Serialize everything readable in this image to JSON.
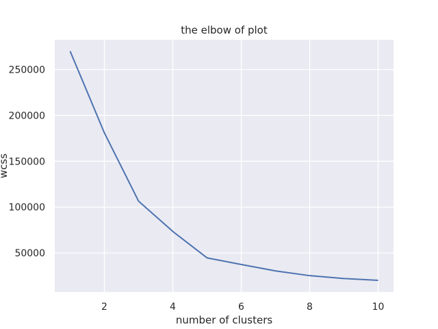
{
  "chart_data": {
    "type": "line",
    "title": "the elbow of plot",
    "xlabel": "number of clusters",
    "ylabel": "wcss",
    "x": [
      1,
      2,
      3,
      4,
      5,
      6,
      7,
      8,
      9,
      10
    ],
    "series": [
      {
        "values": [
          270000,
          181000,
          106500,
          73500,
          44700,
          37500,
          30500,
          25300,
          22200,
          20200
        ]
      }
    ],
    "xlim": [
      0.55,
      10.45
    ],
    "ylim": [
      7500,
      282500
    ],
    "xticks": [
      "2",
      "4",
      "6",
      "8",
      "10"
    ],
    "yticks": [
      "50000",
      "100000",
      "150000",
      "200000",
      "250000"
    ],
    "grid": true,
    "colors": {
      "line": "#4c72b0",
      "plot_bg": "#eaeaf2",
      "grid": "#ffffff"
    }
  }
}
